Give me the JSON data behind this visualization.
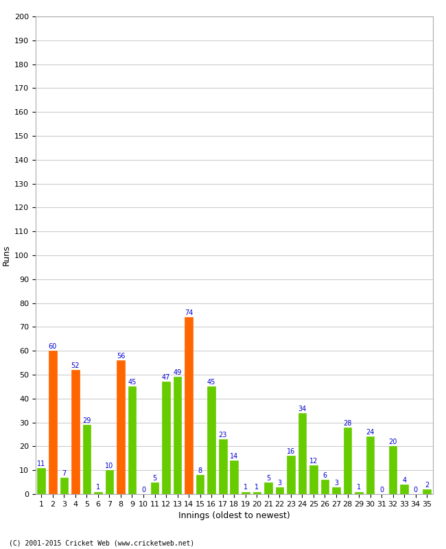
{
  "xlabel": "Innings (oldest to newest)",
  "ylabel": "Runs",
  "copyright": "(C) 2001-2015 Cricket Web (www.cricketweb.net)",
  "values": [
    11,
    60,
    7,
    52,
    29,
    1,
    10,
    56,
    45,
    0,
    5,
    47,
    49,
    74,
    8,
    45,
    23,
    14,
    1,
    1,
    5,
    3,
    16,
    34,
    12,
    6,
    3,
    28,
    1,
    24,
    0,
    20,
    4,
    0,
    2
  ],
  "innings": [
    1,
    2,
    3,
    4,
    5,
    6,
    7,
    8,
    9,
    10,
    11,
    12,
    13,
    14,
    15,
    16,
    17,
    18,
    19,
    20,
    21,
    22,
    23,
    24,
    25,
    26,
    27,
    28,
    29,
    30,
    31,
    32,
    33,
    34,
    35
  ],
  "colors": [
    "#66cc00",
    "#ff6600",
    "#66cc00",
    "#ff6600",
    "#66cc00",
    "#66cc00",
    "#66cc00",
    "#ff6600",
    "#66cc00",
    "#66cc00",
    "#66cc00",
    "#66cc00",
    "#66cc00",
    "#ff6600",
    "#66cc00",
    "#66cc00",
    "#66cc00",
    "#66cc00",
    "#66cc00",
    "#66cc00",
    "#66cc00",
    "#66cc00",
    "#66cc00",
    "#66cc00",
    "#66cc00",
    "#66cc00",
    "#66cc00",
    "#66cc00",
    "#66cc00",
    "#66cc00",
    "#66cc00",
    "#66cc00",
    "#66cc00",
    "#66cc00",
    "#66cc00"
  ],
  "ylim": [
    0,
    200
  ],
  "yticks": [
    0,
    10,
    20,
    30,
    40,
    50,
    60,
    70,
    80,
    90,
    100,
    110,
    120,
    130,
    140,
    150,
    160,
    170,
    180,
    190,
    200
  ],
  "label_color": "#0000cc",
  "bg_color": "#ffffff",
  "grid_color": "#cccccc",
  "axis_fontsize": 9,
  "tick_fontsize": 8,
  "label_fontsize": 7,
  "bar_width": 0.7
}
